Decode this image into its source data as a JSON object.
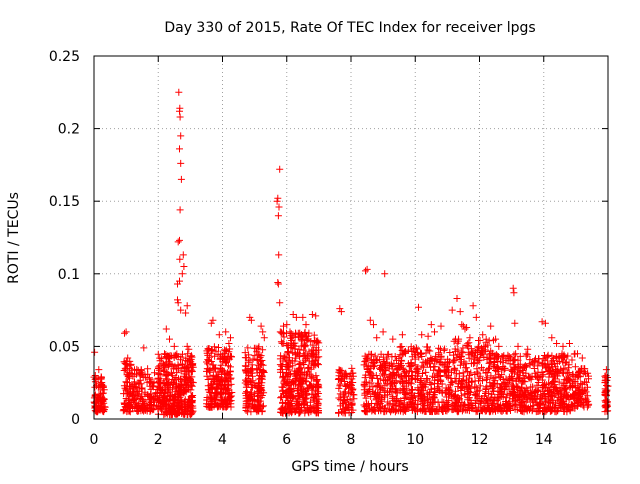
{
  "chart_data": {
    "type": "scatter",
    "title": "Day 330 of 2015, Rate Of TEC Index for receiver lpgs",
    "xlabel": "GPS time / hours",
    "ylabel": "ROTI / TECUs",
    "xlim": [
      0,
      16
    ],
    "ylim": [
      0,
      0.25
    ],
    "xticks": [
      0,
      2,
      4,
      6,
      8,
      10,
      12,
      14,
      16
    ],
    "xtick_labels": [
      "0",
      "2",
      "4",
      "6",
      "8",
      "10",
      "12",
      "14",
      "16"
    ],
    "yticks": [
      0,
      0.05,
      0.1,
      0.15,
      0.2,
      0.25
    ],
    "ytick_labels": [
      "0",
      "0.05",
      "0.1",
      "0.15",
      "0.2",
      "0.25"
    ],
    "grid": true,
    "marker": "+",
    "color": "#ff0000",
    "series": [
      {
        "name": "ROTI",
        "clusters": [
          {
            "x": [
              0.0,
              0.35
            ],
            "y": [
              0.005,
              0.03
            ],
            "n": 90
          },
          {
            "x": [
              0.9,
              1.2
            ],
            "y": [
              0.005,
              0.04
            ],
            "n": 70
          },
          {
            "x": [
              1.2,
              2.0
            ],
            "y": [
              0.005,
              0.035
            ],
            "n": 140
          },
          {
            "x": [
              2.0,
              3.1
            ],
            "y": [
              0.003,
              0.045
            ],
            "n": 380
          },
          {
            "x": [
              3.5,
              4.3
            ],
            "y": [
              0.008,
              0.05
            ],
            "n": 230
          },
          {
            "x": [
              4.7,
              5.3
            ],
            "y": [
              0.005,
              0.05
            ],
            "n": 160
          },
          {
            "x": [
              5.8,
              7.0
            ],
            "y": [
              0.004,
              0.06
            ],
            "n": 420
          },
          {
            "x": [
              7.6,
              8.1
            ],
            "y": [
              0.004,
              0.035
            ],
            "n": 90
          },
          {
            "x": [
              8.4,
              9.5
            ],
            "y": [
              0.005,
              0.045
            ],
            "n": 230
          },
          {
            "x": [
              9.5,
              11.0
            ],
            "y": [
              0.005,
              0.05
            ],
            "n": 330
          },
          {
            "x": [
              11.0,
              12.5
            ],
            "y": [
              0.005,
              0.055
            ],
            "n": 330
          },
          {
            "x": [
              12.5,
              13.8
            ],
            "y": [
              0.005,
              0.045
            ],
            "n": 280
          },
          {
            "x": [
              13.8,
              15.0
            ],
            "y": [
              0.005,
              0.045
            ],
            "n": 280
          },
          {
            "x": [
              15.0,
              15.4
            ],
            "y": [
              0.008,
              0.035
            ],
            "n": 70
          },
          {
            "x": [
              15.9,
              16.0
            ],
            "y": [
              0.005,
              0.03
            ],
            "n": 45
          }
        ],
        "points": [
          [
            0.02,
            0.046
          ],
          [
            0.15,
            0.034
          ],
          [
            0.95,
            0.059
          ],
          [
            1.0,
            0.06
          ],
          [
            1.05,
            0.042
          ],
          [
            1.55,
            0.049
          ],
          [
            2.25,
            0.062
          ],
          [
            2.35,
            0.055
          ],
          [
            2.5,
            0.05
          ],
          [
            2.6,
            0.082
          ],
          [
            2.62,
            0.08
          ],
          [
            2.6,
            0.093
          ],
          [
            2.66,
            0.095
          ],
          [
            2.62,
            0.122
          ],
          [
            2.66,
            0.123
          ],
          [
            2.67,
            0.11
          ],
          [
            2.68,
            0.144
          ],
          [
            2.66,
            0.186
          ],
          [
            2.7,
            0.195
          ],
          [
            2.7,
            0.176
          ],
          [
            2.72,
            0.165
          ],
          [
            2.68,
            0.208
          ],
          [
            2.66,
            0.212
          ],
          [
            2.67,
            0.214
          ],
          [
            2.64,
            0.225
          ],
          [
            2.75,
            0.1
          ],
          [
            2.78,
            0.113
          ],
          [
            2.8,
            0.105
          ],
          [
            2.85,
            0.073
          ],
          [
            2.9,
            0.078
          ],
          [
            2.7,
            0.075
          ],
          [
            2.9,
            0.05
          ],
          [
            2.95,
            0.048
          ],
          [
            3.65,
            0.066
          ],
          [
            3.7,
            0.068
          ],
          [
            3.9,
            0.058
          ],
          [
            4.1,
            0.06
          ],
          [
            4.2,
            0.052
          ],
          [
            4.25,
            0.056
          ],
          [
            4.85,
            0.07
          ],
          [
            4.9,
            0.068
          ],
          [
            5.2,
            0.064
          ],
          [
            5.25,
            0.06
          ],
          [
            5.3,
            0.056
          ],
          [
            5.7,
            0.15
          ],
          [
            5.72,
            0.152
          ],
          [
            5.74,
            0.14
          ],
          [
            5.76,
            0.146
          ],
          [
            5.78,
            0.172
          ],
          [
            5.75,
            0.113
          ],
          [
            5.72,
            0.094
          ],
          [
            5.74,
            0.093
          ],
          [
            5.78,
            0.08
          ],
          [
            5.8,
            0.06
          ],
          [
            5.9,
            0.064
          ],
          [
            6.2,
            0.072
          ],
          [
            6.3,
            0.07
          ],
          [
            6.5,
            0.07
          ],
          [
            6.6,
            0.065
          ],
          [
            6.8,
            0.072
          ],
          [
            6.9,
            0.071
          ],
          [
            6.0,
            0.065
          ],
          [
            6.1,
            0.06
          ],
          [
            7.65,
            0.076
          ],
          [
            7.7,
            0.074
          ],
          [
            8.45,
            0.102
          ],
          [
            8.5,
            0.103
          ],
          [
            9.05,
            0.1
          ],
          [
            8.6,
            0.068
          ],
          [
            8.7,
            0.065
          ],
          [
            8.8,
            0.056
          ],
          [
            9.0,
            0.06
          ],
          [
            9.3,
            0.055
          ],
          [
            9.6,
            0.058
          ],
          [
            10.1,
            0.077
          ],
          [
            10.4,
            0.057
          ],
          [
            10.6,
            0.06
          ],
          [
            10.2,
            0.058
          ],
          [
            10.5,
            0.065
          ],
          [
            10.8,
            0.064
          ],
          [
            11.15,
            0.075
          ],
          [
            11.3,
            0.083
          ],
          [
            11.4,
            0.074
          ],
          [
            11.45,
            0.065
          ],
          [
            11.5,
            0.064
          ],
          [
            11.55,
            0.062
          ],
          [
            11.6,
            0.063
          ],
          [
            11.35,
            0.055
          ],
          [
            11.8,
            0.078
          ],
          [
            11.9,
            0.07
          ],
          [
            11.7,
            0.056
          ],
          [
            12.1,
            0.058
          ],
          [
            12.35,
            0.064
          ],
          [
            12.5,
            0.055
          ],
          [
            12.6,
            0.05
          ],
          [
            13.05,
            0.09
          ],
          [
            13.07,
            0.087
          ],
          [
            13.1,
            0.066
          ],
          [
            13.2,
            0.05
          ],
          [
            13.5,
            0.048
          ],
          [
            13.95,
            0.067
          ],
          [
            14.05,
            0.066
          ],
          [
            14.25,
            0.056
          ],
          [
            14.4,
            0.052
          ],
          [
            14.6,
            0.05
          ],
          [
            14.8,
            0.052
          ],
          [
            15.05,
            0.045
          ],
          [
            15.2,
            0.042
          ],
          [
            15.95,
            0.034
          ]
        ]
      }
    ]
  }
}
